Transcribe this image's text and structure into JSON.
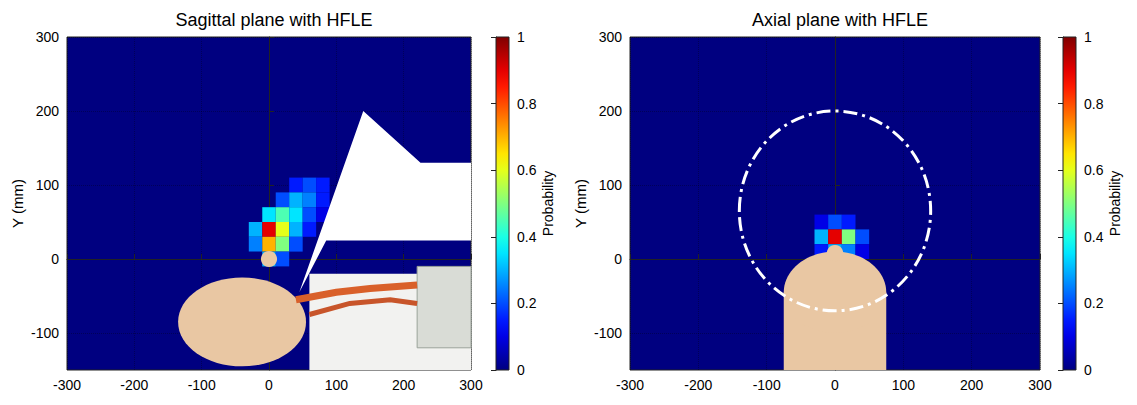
{
  "chart_data": [
    {
      "type": "heatmap",
      "title": "Sagittal plane with HFLE",
      "y_label": "Y (mm)",
      "xlim": [
        -300,
        300
      ],
      "xticks": [
        -300,
        -200,
        -100,
        0,
        100,
        200,
        300
      ],
      "ylim": [
        -150,
        300
      ],
      "yticks": [
        -100,
        0,
        100,
        200,
        300
      ],
      "grid": true,
      "cells": {
        "x": [
          40,
          60,
          80,
          20,
          40,
          60,
          80,
          0,
          20,
          40,
          60,
          80,
          -20,
          0,
          20,
          40,
          60,
          -20,
          0,
          20,
          40,
          0,
          20
        ],
        "y": [
          100,
          100,
          100,
          80,
          80,
          80,
          80,
          60,
          60,
          60,
          60,
          60,
          40,
          40,
          40,
          40,
          40,
          20,
          20,
          20,
          20,
          0,
          0
        ],
        "values": [
          0.15,
          0.2,
          0.15,
          0.2,
          0.3,
          0.25,
          0.15,
          0.35,
          0.45,
          0.35,
          0.2,
          0.1,
          0.3,
          0.9,
          0.6,
          0.3,
          0.15,
          0.25,
          0.7,
          0.5,
          0.2,
          0.3,
          0.2
        ]
      },
      "colorbar": {
        "label": "Probability",
        "range": [
          0,
          1
        ],
        "ticks": [
          0,
          0.2,
          0.4,
          0.6,
          0.8,
          1
        ]
      }
    },
    {
      "type": "heatmap",
      "title": "Axial plane with HFLE",
      "y_label": "Y (mm)",
      "xlim": [
        -300,
        300
      ],
      "xticks": [
        -300,
        -200,
        -100,
        0,
        100,
        200,
        300
      ],
      "ylim": [
        -150,
        300
      ],
      "yticks": [
        -100,
        0,
        100,
        200,
        300
      ],
      "grid": true,
      "cells": {
        "x": [
          -20,
          0,
          20,
          -20,
          0,
          20,
          40,
          -20,
          0,
          20,
          40
        ],
        "y": [
          50,
          50,
          50,
          30,
          30,
          30,
          30,
          10,
          10,
          10,
          10
        ],
        "values": [
          0.1,
          0.2,
          0.15,
          0.3,
          0.9,
          0.5,
          0.2,
          0.15,
          0.3,
          0.25,
          0.1
        ]
      },
      "colorbar": {
        "label": "Probability",
        "range": [
          0,
          1
        ],
        "ticks": [
          0,
          0.2,
          0.4,
          0.6,
          0.8,
          1
        ]
      }
    }
  ]
}
